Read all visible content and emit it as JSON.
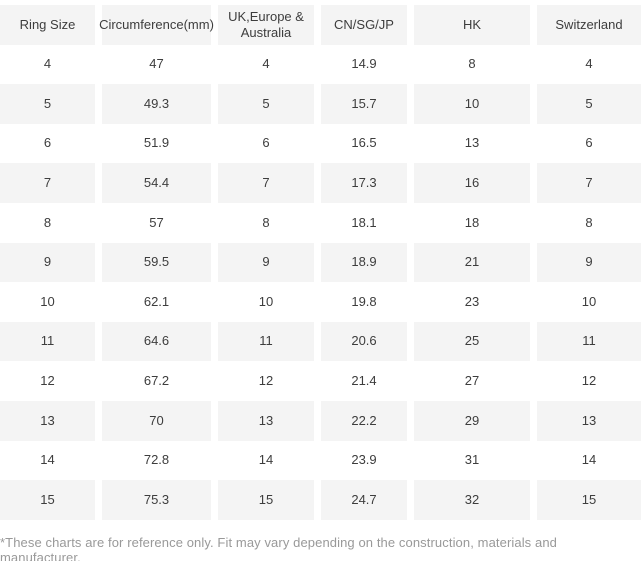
{
  "chart_data": {
    "type": "table",
    "columns": [
      "Ring Size",
      "Circumference(mm)",
      "UK,Europe & Australia",
      "CN/SG/JP",
      "HK",
      "Switzerland"
    ],
    "rows": [
      [
        "4",
        "47",
        "4",
        "14.9",
        "8",
        "4"
      ],
      [
        "5",
        "49.3",
        "5",
        "15.7",
        "10",
        "5"
      ],
      [
        "6",
        "51.9",
        "6",
        "16.5",
        "13",
        "6"
      ],
      [
        "7",
        "54.4",
        "7",
        "17.3",
        "16",
        "7"
      ],
      [
        "8",
        "57",
        "8",
        "18.1",
        "18",
        "8"
      ],
      [
        "9",
        "59.5",
        "9",
        "18.9",
        "21",
        "9"
      ],
      [
        "10",
        "62.1",
        "10",
        "19.8",
        "23",
        "10"
      ],
      [
        "11",
        "64.6",
        "11",
        "20.6",
        "25",
        "11"
      ],
      [
        "12",
        "67.2",
        "12",
        "21.4",
        "27",
        "12"
      ],
      [
        "13",
        "70",
        "13",
        "22.2",
        "29",
        "13"
      ],
      [
        "14",
        "72.8",
        "14",
        "23.9",
        "31",
        "14"
      ],
      [
        "15",
        "75.3",
        "15",
        "24.7",
        "32",
        "15"
      ]
    ],
    "layout": {
      "header_background": "#f4f4f4",
      "alt_row_background": "#f4f4f4",
      "row_background": "#ffffff",
      "grid": "white vertical gaps between columns"
    }
  },
  "footnote": "*These charts are for reference only. Fit may vary depending on the construction, materials and manufacturer.",
  "colors": {
    "cell_text": "#3d3d3d",
    "row_alt_bg": "#f4f4f4",
    "footnote_text": "#999999",
    "background": "#ffffff"
  }
}
